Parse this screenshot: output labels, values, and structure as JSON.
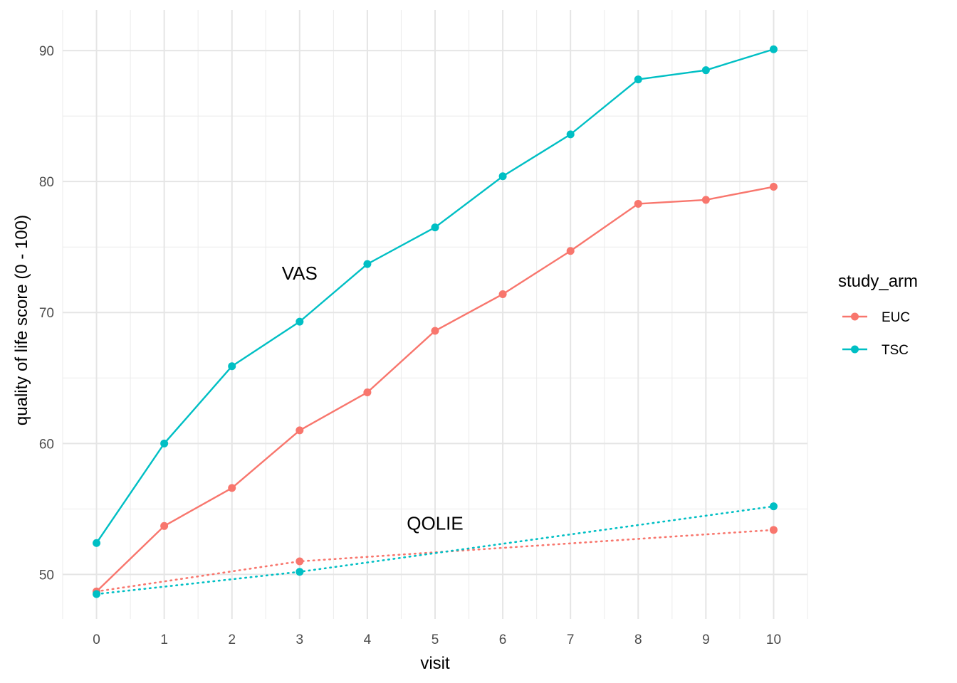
{
  "chart_data": {
    "type": "line",
    "title": "",
    "xlabel": "visit",
    "ylabel": "quality of life score (0 - 100)",
    "x": [
      0,
      1,
      2,
      3,
      4,
      5,
      6,
      7,
      8,
      9,
      10
    ],
    "xlim": [
      -0.5,
      10.5
    ],
    "ylim": [
      46.6,
      93.1
    ],
    "yticks": [
      50,
      60,
      70,
      80,
      90
    ],
    "grid": true,
    "legend": {
      "title": "study_arm",
      "placement": "right",
      "entries": [
        {
          "label": "EUC",
          "color": "#F8766D"
        },
        {
          "label": "TSC",
          "color": "#00BFC4"
        }
      ]
    },
    "series": [
      {
        "arm": "EUC",
        "measure": "VAS",
        "color": "#F8766D",
        "line": "solid",
        "x": [
          0,
          1,
          2,
          3,
          4,
          5,
          6,
          7,
          8,
          9,
          10
        ],
        "values": [
          48.7,
          53.7,
          56.6,
          61.0,
          63.9,
          68.6,
          71.4,
          74.7,
          78.3,
          78.6,
          79.6
        ]
      },
      {
        "arm": "TSC",
        "measure": "VAS",
        "color": "#00BFC4",
        "line": "solid",
        "x": [
          0,
          1,
          2,
          3,
          4,
          5,
          6,
          7,
          8,
          9,
          10
        ],
        "values": [
          52.4,
          60.0,
          65.9,
          69.3,
          73.7,
          76.5,
          80.4,
          83.6,
          87.8,
          88.5,
          90.1
        ]
      },
      {
        "arm": "EUC",
        "measure": "QOLIE",
        "color": "#F8766D",
        "line": "dotted",
        "x": [
          0,
          3,
          10
        ],
        "values": [
          48.7,
          51.0,
          53.4
        ]
      },
      {
        "arm": "TSC",
        "measure": "QOLIE",
        "color": "#00BFC4",
        "line": "dotted",
        "x": [
          0,
          3,
          10
        ],
        "values": [
          48.5,
          50.2,
          55.2
        ]
      }
    ],
    "annotations": [
      {
        "text": "VAS",
        "x": 3.0,
        "y": 73.0
      },
      {
        "text": "QOLIE",
        "x": 5.0,
        "y": 53.9
      }
    ]
  }
}
